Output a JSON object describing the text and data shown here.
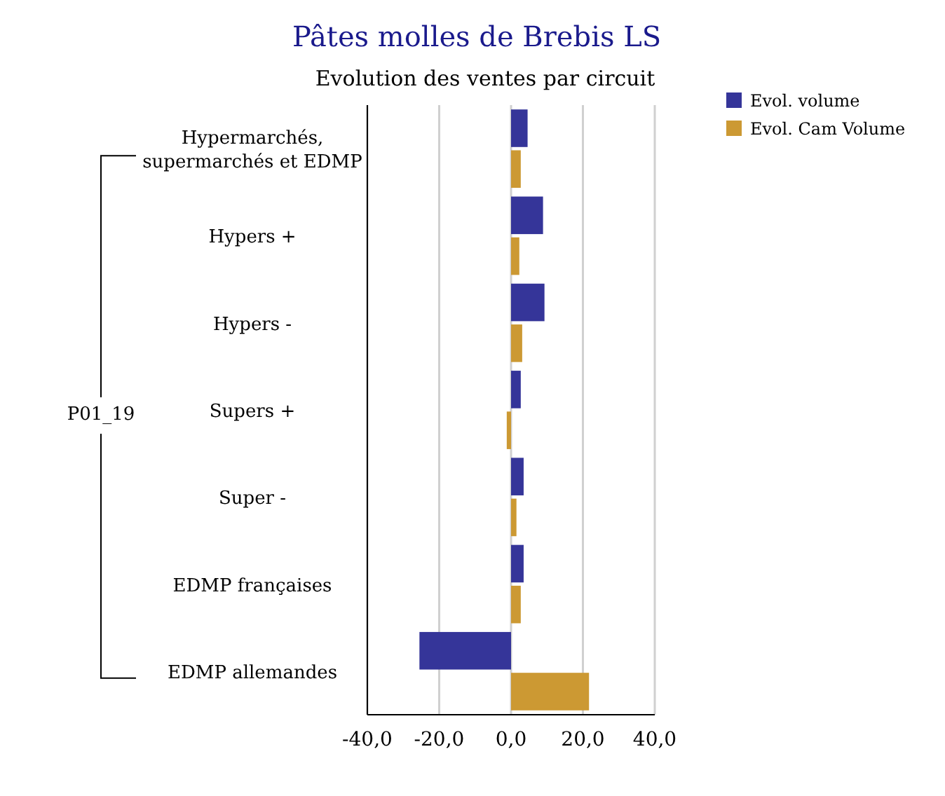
{
  "chart_data": {
    "type": "bar",
    "orientation": "horizontal",
    "title": "Pâtes molles de Brebis LS",
    "subtitle": "Evolution des ventes par circuit",
    "categories": [
      "Hypermarchés, supermarchés et EDMP",
      "Hypers +",
      "Hypers -",
      "Supers +",
      "Super -",
      "EDMP françaises",
      "EDMP allemandes"
    ],
    "series": [
      {
        "name": "Evol. volume",
        "color": "#353599",
        "values": [
          4.6,
          8.9,
          9.3,
          2.7,
          3.5,
          3.5,
          -25.5
        ]
      },
      {
        "name": "Evol. Cam Volume",
        "color": "#cc9933",
        "values": [
          2.7,
          2.3,
          3.1,
          -1.2,
          1.5,
          2.7,
          21.7
        ]
      }
    ],
    "xlim": [
      -40,
      40
    ],
    "xticks": [
      {
        "value": -40,
        "label": "-40,0"
      },
      {
        "value": -20,
        "label": "-20,0"
      },
      {
        "value": 0,
        "label": "0,0"
      },
      {
        "value": 20,
        "label": "20,0"
      },
      {
        "value": 40,
        "label": "40,0"
      }
    ],
    "grid": "x",
    "legend": "top right",
    "annotations": [
      "P01_19"
    ]
  }
}
